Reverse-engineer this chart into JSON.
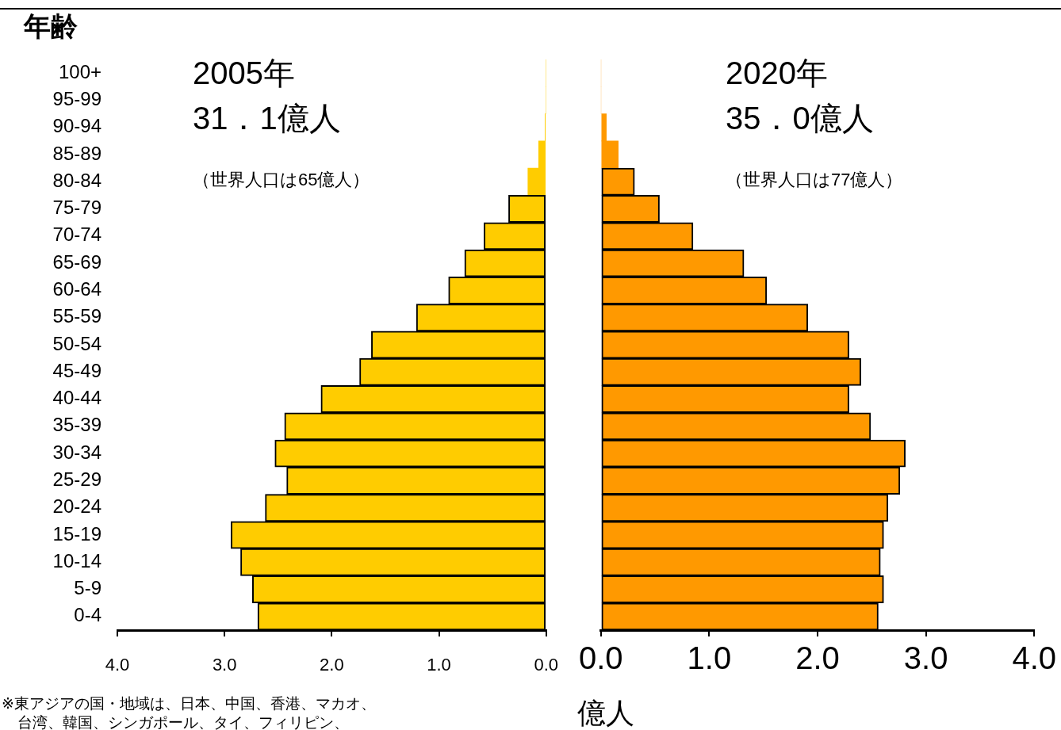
{
  "chart_data": [
    {
      "type": "bar",
      "orientation": "horizontal",
      "title": "2005年",
      "subtitle": "31．1億人",
      "ylabel": "年齢",
      "annotations": [
        "（世界人口は65億人）",
        "※東アジアの国・地域は、日本、中国、香港、マカオ、台湾、韓国、シンガポール、タイ、フィリピン、"
      ],
      "categories": [
        "100+",
        "95-99",
        "90-94",
        "85-89",
        "80-84",
        "75-79",
        "70-74",
        "65-69",
        "60-64",
        "55-59",
        "50-54",
        "45-49",
        "40-44",
        "35-39",
        "30-34",
        "25-29",
        "20-24",
        "15-19",
        "10-14",
        "5-9",
        "0-4"
      ],
      "values": [
        0,
        0,
        0.01,
        0.07,
        0.17,
        0.35,
        0.58,
        0.76,
        0.91,
        1.21,
        1.63,
        1.74,
        2.1,
        2.44,
        2.53,
        2.42,
        2.62,
        2.94,
        2.85,
        2.74,
        2.69
      ],
      "color": "#ffcc00",
      "xlim": [
        4,
        0
      ],
      "xticks": [
        {
          "value": 4,
          "label": "4.0"
        },
        {
          "value": 3,
          "label": "3.0"
        },
        {
          "value": 2,
          "label": "2.0"
        },
        {
          "value": 1,
          "label": "1.0"
        },
        {
          "value": 0,
          "label": "0.0"
        }
      ],
      "grid": false,
      "legend": false
    },
    {
      "type": "bar",
      "orientation": "horizontal",
      "title": "2020年",
      "subtitle": "35．0億人",
      "xlabel": "億人",
      "annotations": [
        "（世界人口は77億人）"
      ],
      "categories": [
        null,
        null,
        null,
        null,
        null,
        null,
        null,
        null,
        null,
        null,
        null,
        null,
        null,
        null,
        null,
        null,
        null,
        null,
        null,
        null,
        null
      ],
      "values": [
        0,
        0,
        0.05,
        0.16,
        0.31,
        0.54,
        0.85,
        1.32,
        1.53,
        1.91,
        2.29,
        2.4,
        2.29,
        2.49,
        2.81,
        2.76,
        2.65,
        2.61,
        2.58,
        2.61,
        2.56
      ],
      "color": "#ff9900",
      "xlim": [
        0,
        4
      ],
      "xticks": [
        {
          "value": 0,
          "label": "0.0"
        },
        {
          "value": 1,
          "label": "1.0"
        },
        {
          "value": 2,
          "label": "2.0"
        },
        {
          "value": 3,
          "label": "3.0"
        },
        {
          "value": 4,
          "label": "4.0"
        }
      ],
      "grid": false,
      "legend": false,
      "tick_labels": "x"
    }
  ]
}
